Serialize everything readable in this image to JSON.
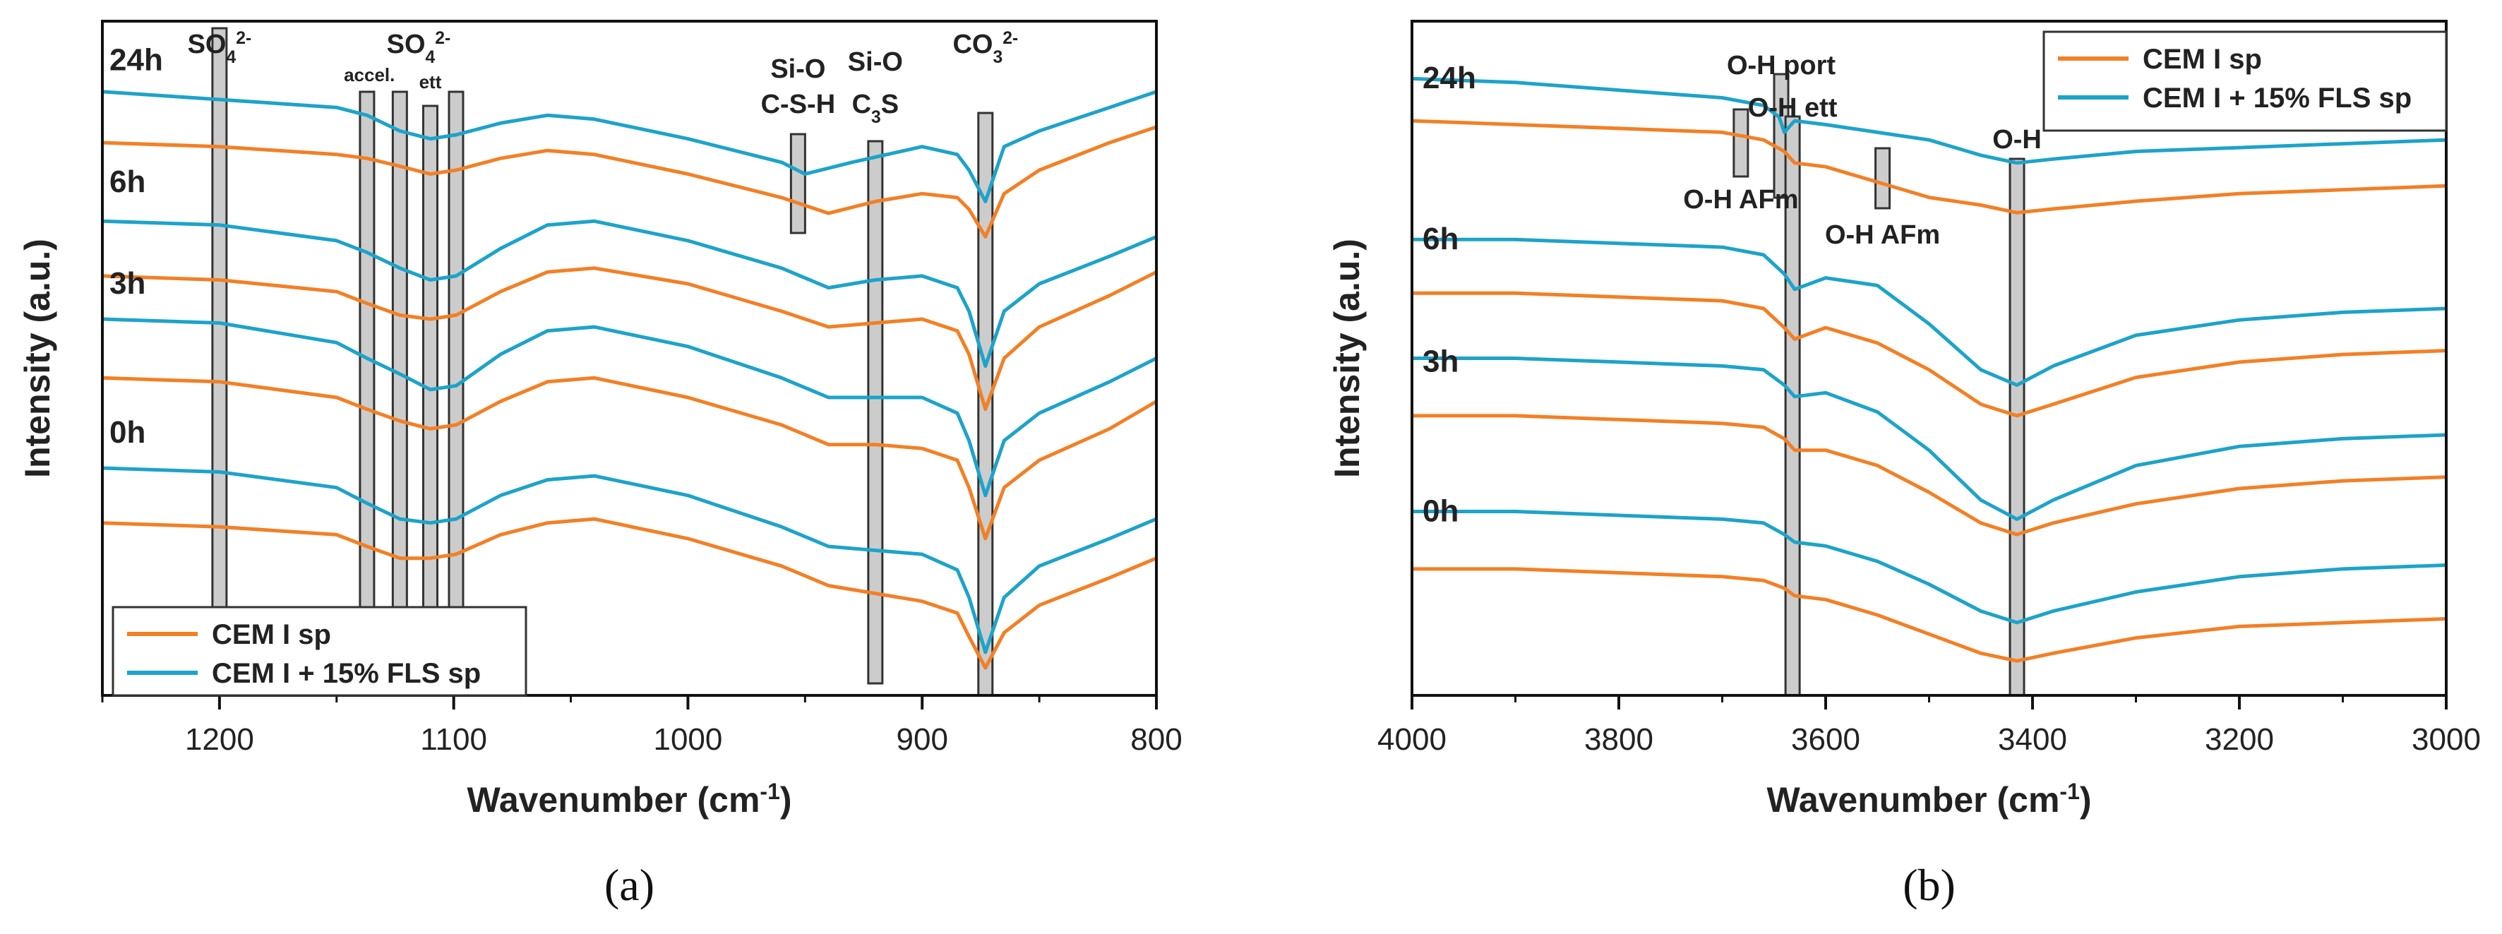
{
  "chart_data": [
    {
      "type": "line",
      "xlabel": "Wavenumber (cm",
      "xlabel_sup": "-1",
      "xlabel_end": ")",
      "ylabel": "Intensity (a.u.)",
      "panel_label": "(a)",
      "xlim": [
        1250,
        800
      ],
      "xticks": [
        1200,
        1100,
        1000,
        900,
        800
      ],
      "legend": {
        "placement": "bottom-left",
        "entries": [
          "CEM I sp",
          "CEM I + 15% FLS sp"
        ]
      },
      "colors": {
        "CEM I sp": "#F28026",
        "CEM I + 15% FLS sp": "#1EA3C9"
      },
      "time_labels": [
        "24h",
        "6h",
        "3h",
        "0h"
      ],
      "annotations": [
        {
          "text": "SO",
          "sub": "4",
          "sup": "2-",
          "x": 1200
        },
        {
          "text": "accel.",
          "x": 1136
        },
        {
          "text": "SO",
          "sub": "4",
          "sup": "2-",
          "x": 1115
        },
        {
          "text": "ett",
          "x": 1110
        },
        {
          "text": "Si-O",
          "x": 953
        },
        {
          "text": "C-S-H",
          "x": 953
        },
        {
          "text": "Si-O",
          "x": 920
        },
        {
          "text": "C",
          "sub": "3",
          "after": "S",
          "x": 920
        },
        {
          "text": "CO",
          "sub": "3",
          "sup": "2-",
          "x": 873
        }
      ],
      "marker_bars": [
        1200,
        1137,
        1123,
        1110,
        1099,
        953,
        920,
        873
      ],
      "series": [
        {
          "name": "CEM I + 15% FLS sp",
          "time": "24h",
          "x": [
            1250,
            1200,
            1150,
            1137,
            1123,
            1110,
            1099,
            1080,
            1060,
            1040,
            1000,
            960,
            950,
            930,
            900,
            885,
            880,
            873,
            865,
            850,
            820,
            800
          ],
          "y": [
            7.4,
            7.3,
            7.2,
            7.1,
            6.9,
            6.8,
            6.85,
            7.0,
            7.1,
            7.05,
            6.8,
            6.5,
            6.35,
            6.5,
            6.7,
            6.6,
            6.4,
            6.0,
            6.7,
            6.9,
            7.2,
            7.4
          ]
        },
        {
          "name": "CEM I sp",
          "time": "24h",
          "x": [
            1250,
            1200,
            1150,
            1137,
            1123,
            1110,
            1099,
            1080,
            1060,
            1040,
            1000,
            960,
            940,
            920,
            900,
            885,
            880,
            873,
            865,
            850,
            820,
            800
          ],
          "y": [
            6.75,
            6.7,
            6.6,
            6.55,
            6.45,
            6.35,
            6.4,
            6.55,
            6.65,
            6.6,
            6.35,
            6.05,
            5.85,
            6.0,
            6.1,
            6.05,
            5.9,
            5.55,
            6.1,
            6.4,
            6.75,
            6.95
          ]
        },
        {
          "name": "CEM I + 15% FLS sp",
          "time": "6h",
          "x": [
            1250,
            1200,
            1150,
            1137,
            1123,
            1110,
            1099,
            1080,
            1060,
            1040,
            1000,
            960,
            940,
            920,
            900,
            885,
            880,
            873,
            865,
            850,
            820,
            800
          ],
          "y": [
            5.75,
            5.7,
            5.5,
            5.35,
            5.15,
            5.0,
            5.05,
            5.4,
            5.7,
            5.75,
            5.5,
            5.15,
            4.9,
            5.0,
            5.05,
            4.9,
            4.6,
            3.9,
            4.6,
            4.95,
            5.3,
            5.55
          ]
        },
        {
          "name": "CEM I sp",
          "time": "6h",
          "x": [
            1250,
            1200,
            1150,
            1137,
            1123,
            1110,
            1099,
            1080,
            1060,
            1040,
            1000,
            960,
            940,
            920,
            900,
            885,
            880,
            873,
            865,
            850,
            820,
            800
          ],
          "y": [
            5.05,
            5.0,
            4.85,
            4.7,
            4.55,
            4.5,
            4.55,
            4.85,
            5.1,
            5.15,
            4.95,
            4.6,
            4.4,
            4.45,
            4.5,
            4.35,
            4.05,
            3.35,
            4.0,
            4.4,
            4.8,
            5.1
          ]
        },
        {
          "name": "CEM I + 15% FLS sp",
          "time": "3h",
          "x": [
            1250,
            1200,
            1150,
            1137,
            1123,
            1110,
            1099,
            1080,
            1060,
            1040,
            1000,
            960,
            940,
            920,
            900,
            885,
            880,
            873,
            865,
            850,
            820,
            800
          ],
          "y": [
            4.5,
            4.45,
            4.2,
            4.0,
            3.8,
            3.6,
            3.65,
            4.05,
            4.35,
            4.4,
            4.15,
            3.75,
            3.5,
            3.5,
            3.5,
            3.3,
            2.95,
            2.25,
            2.95,
            3.3,
            3.7,
            4.0
          ]
        },
        {
          "name": "CEM I sp",
          "time": "3h",
          "x": [
            1250,
            1200,
            1150,
            1137,
            1123,
            1110,
            1099,
            1080,
            1060,
            1040,
            1000,
            960,
            940,
            920,
            900,
            885,
            880,
            873,
            865,
            850,
            820,
            800
          ],
          "y": [
            3.75,
            3.7,
            3.5,
            3.35,
            3.2,
            3.1,
            3.15,
            3.45,
            3.7,
            3.75,
            3.5,
            3.15,
            2.9,
            2.9,
            2.85,
            2.7,
            2.35,
            1.7,
            2.35,
            2.7,
            3.1,
            3.45
          ]
        },
        {
          "name": "CEM I + 15% FLS sp",
          "time": "0h",
          "x": [
            1250,
            1200,
            1150,
            1137,
            1123,
            1110,
            1099,
            1080,
            1060,
            1040,
            1000,
            960,
            940,
            920,
            900,
            885,
            880,
            873,
            865,
            850,
            820,
            800
          ],
          "y": [
            2.6,
            2.55,
            2.35,
            2.15,
            1.95,
            1.9,
            1.95,
            2.25,
            2.45,
            2.5,
            2.25,
            1.85,
            1.6,
            1.55,
            1.5,
            1.3,
            0.95,
            0.25,
            0.95,
            1.35,
            1.7,
            1.95
          ]
        },
        {
          "name": "CEM I sp",
          "time": "0h",
          "x": [
            1250,
            1200,
            1150,
            1137,
            1123,
            1110,
            1099,
            1080,
            1060,
            1040,
            1000,
            960,
            940,
            920,
            900,
            885,
            880,
            873,
            865,
            850,
            820,
            800
          ],
          "y": [
            1.9,
            1.85,
            1.75,
            1.6,
            1.45,
            1.45,
            1.5,
            1.75,
            1.9,
            1.95,
            1.7,
            1.35,
            1.1,
            1.0,
            0.9,
            0.75,
            0.45,
            0.05,
            0.5,
            0.85,
            1.2,
            1.45
          ]
        }
      ]
    },
    {
      "type": "line",
      "xlabel": "Wavenumber (cm",
      "xlabel_sup": "-1",
      "xlabel_end": ")",
      "ylabel": "Intensity (a.u.)",
      "panel_label": "(b)",
      "xlim": [
        4000,
        3000
      ],
      "xticks": [
        4000,
        3800,
        3600,
        3400,
        3200,
        3000
      ],
      "legend": {
        "placement": "top-right",
        "entries": [
          "CEM I sp",
          "CEM I + 15% FLS sp"
        ]
      },
      "colors": {
        "CEM I sp": "#F28026",
        "CEM I + 15% FLS sp": "#1EA3C9"
      },
      "time_labels": [
        "24h",
        "6h",
        "3h",
        "0h"
      ],
      "annotations": [
        {
          "text": "O-H port",
          "x": 3643
        },
        {
          "text": "O-H ett",
          "x": 3632
        },
        {
          "text": "O-H AFm",
          "x": 3682
        },
        {
          "text": "O-H AFm",
          "x": 3545
        },
        {
          "text": "O-H",
          "x": 3415
        }
      ],
      "marker_bars": [
        3682,
        3643,
        3632,
        3545,
        3415
      ],
      "series": [
        {
          "name": "CEM I + 15% FLS sp",
          "time": "24h",
          "x": [
            4000,
            3900,
            3800,
            3700,
            3660,
            3645,
            3640,
            3630,
            3600,
            3550,
            3500,
            3450,
            3415,
            3380,
            3300,
            3200,
            3100,
            3000
          ],
          "y": [
            7.55,
            7.5,
            7.4,
            7.3,
            7.2,
            7.05,
            6.85,
            7.0,
            6.95,
            6.85,
            6.75,
            6.55,
            6.45,
            6.5,
            6.6,
            6.65,
            6.7,
            6.75
          ]
        },
        {
          "name": "CEM I sp",
          "time": "24h",
          "x": [
            4000,
            3900,
            3800,
            3700,
            3660,
            3640,
            3630,
            3600,
            3550,
            3500,
            3450,
            3415,
            3380,
            3300,
            3200,
            3100,
            3000
          ],
          "y": [
            7.0,
            6.95,
            6.9,
            6.85,
            6.75,
            6.6,
            6.45,
            6.4,
            6.2,
            6.0,
            5.9,
            5.8,
            5.85,
            5.95,
            6.05,
            6.1,
            6.15
          ]
        },
        {
          "name": "CEM I + 15% FLS sp",
          "time": "6h",
          "x": [
            4000,
            3900,
            3800,
            3700,
            3660,
            3640,
            3630,
            3600,
            3550,
            3500,
            3450,
            3415,
            3380,
            3300,
            3200,
            3100,
            3000
          ],
          "y": [
            5.45,
            5.45,
            5.4,
            5.35,
            5.25,
            5.0,
            4.8,
            4.95,
            4.85,
            4.35,
            3.75,
            3.55,
            3.8,
            4.2,
            4.4,
            4.5,
            4.55
          ]
        },
        {
          "name": "CEM I sp",
          "time": "6h",
          "x": [
            4000,
            3900,
            3800,
            3700,
            3660,
            3640,
            3630,
            3600,
            3550,
            3500,
            3450,
            3415,
            3380,
            3300,
            3200,
            3100,
            3000
          ],
          "y": [
            4.75,
            4.75,
            4.7,
            4.65,
            4.55,
            4.3,
            4.15,
            4.3,
            4.1,
            3.75,
            3.3,
            3.15,
            3.3,
            3.65,
            3.85,
            3.95,
            4.0
          ]
        },
        {
          "name": "CEM I + 15% FLS sp",
          "time": "3h",
          "x": [
            4000,
            3900,
            3800,
            3700,
            3660,
            3640,
            3630,
            3600,
            3550,
            3500,
            3450,
            3415,
            3380,
            3300,
            3200,
            3100,
            3000
          ],
          "y": [
            3.9,
            3.9,
            3.85,
            3.8,
            3.75,
            3.55,
            3.4,
            3.45,
            3.2,
            2.7,
            2.05,
            1.8,
            2.05,
            2.5,
            2.75,
            2.85,
            2.9
          ]
        },
        {
          "name": "CEM I sp",
          "time": "3h",
          "x": [
            4000,
            3900,
            3800,
            3700,
            3660,
            3640,
            3630,
            3600,
            3550,
            3500,
            3450,
            3415,
            3380,
            3300,
            3200,
            3100,
            3000
          ],
          "y": [
            3.15,
            3.15,
            3.1,
            3.05,
            3.0,
            2.85,
            2.7,
            2.7,
            2.5,
            2.15,
            1.75,
            1.6,
            1.75,
            2.0,
            2.2,
            2.3,
            2.35
          ]
        },
        {
          "name": "CEM I + 15% FLS sp",
          "time": "0h",
          "x": [
            4000,
            3900,
            3800,
            3700,
            3660,
            3640,
            3630,
            3600,
            3550,
            3500,
            3450,
            3415,
            3380,
            3300,
            3200,
            3100,
            3000
          ],
          "y": [
            1.9,
            1.9,
            1.85,
            1.8,
            1.75,
            1.6,
            1.5,
            1.45,
            1.25,
            0.95,
            0.6,
            0.45,
            0.6,
            0.85,
            1.05,
            1.15,
            1.2
          ]
        },
        {
          "name": "CEM I sp",
          "time": "0h",
          "x": [
            4000,
            3900,
            3800,
            3700,
            3660,
            3640,
            3630,
            3600,
            3550,
            3500,
            3450,
            3415,
            3380,
            3300,
            3200,
            3100,
            3000
          ],
          "y": [
            1.15,
            1.15,
            1.1,
            1.05,
            1.0,
            0.9,
            0.8,
            0.75,
            0.55,
            0.3,
            0.05,
            -0.05,
            0.05,
            0.25,
            0.4,
            0.45,
            0.5
          ]
        }
      ]
    }
  ]
}
